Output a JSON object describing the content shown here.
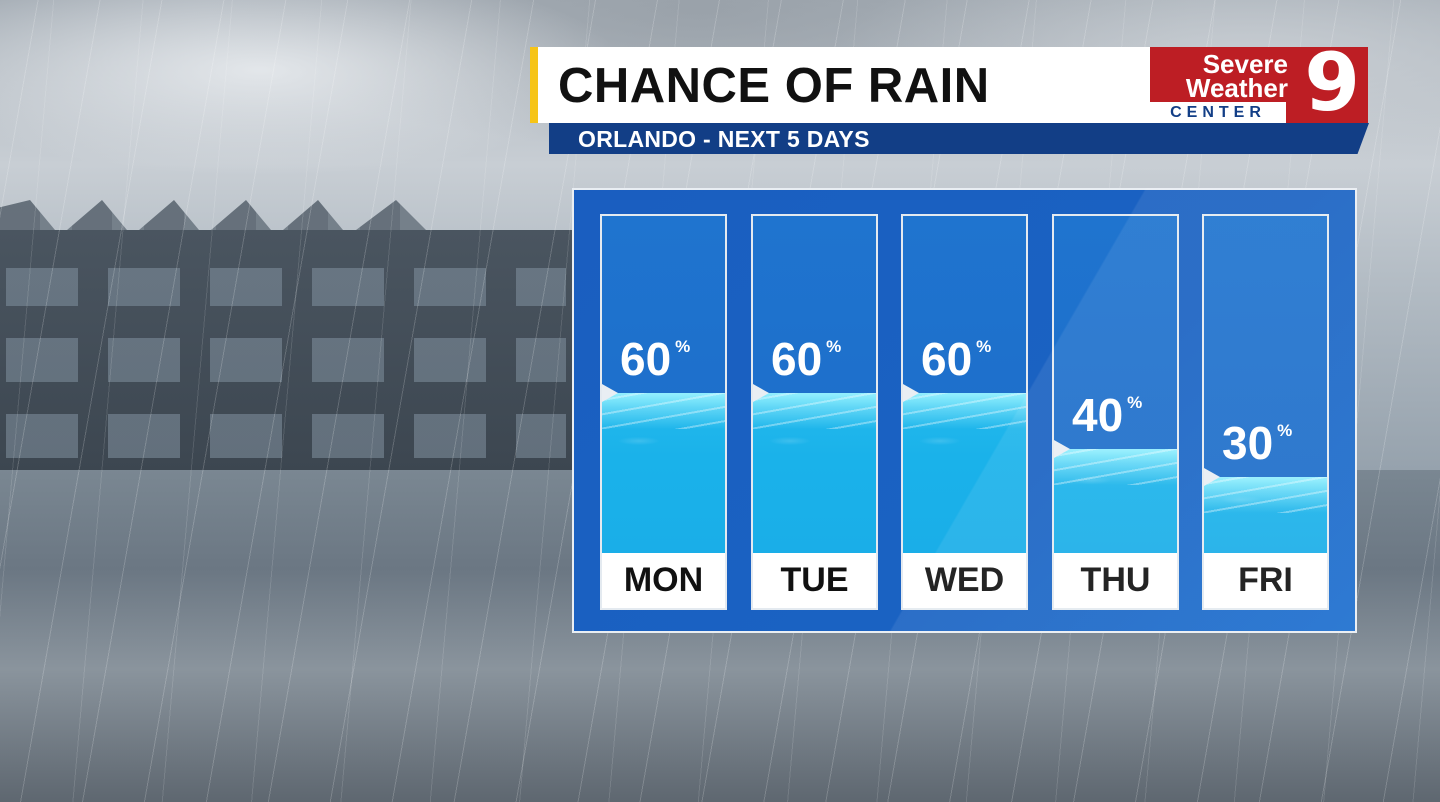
{
  "header": {
    "title": "CHANCE OF RAIN",
    "subtitle": "ORLANDO - NEXT 5 DAYS"
  },
  "logo": {
    "line1": "Severe",
    "line2": "Weather",
    "line3": "CENTER",
    "number": "9"
  },
  "colors": {
    "brand_red": "#bd1e24",
    "brand_blue": "#123e86",
    "accent_yellow": "#f6c417",
    "panel_blue": "#1a62c2",
    "water_cyan": "#1ab2ea"
  },
  "chart_data": {
    "type": "bar",
    "categories": [
      "MON",
      "TUE",
      "WED",
      "THU",
      "FRI"
    ],
    "values": [
      60,
      60,
      60,
      40,
      30
    ],
    "labels": [
      "60",
      "60",
      "60",
      "40",
      "30"
    ],
    "unit": "%",
    "ylim": [
      0,
      100
    ],
    "grid": false,
    "legend": "none"
  }
}
